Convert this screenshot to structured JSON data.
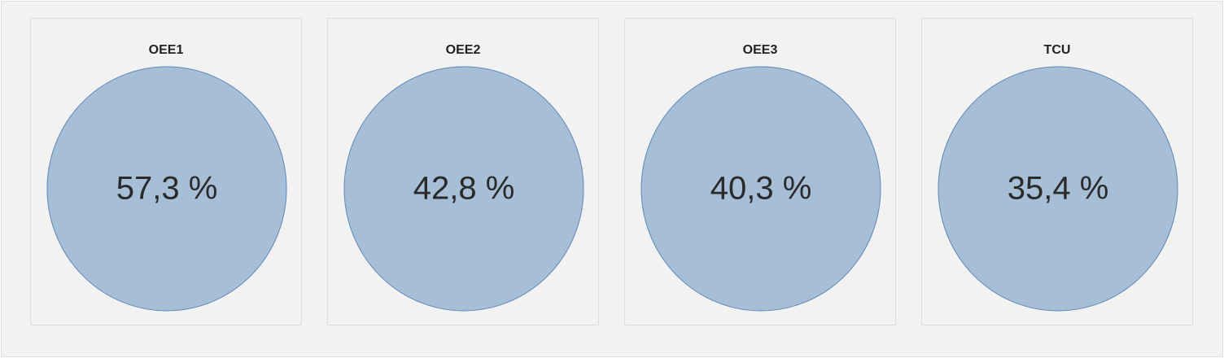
{
  "cards": [
    {
      "title": "OEE1",
      "value": "57,3 %"
    },
    {
      "title": "OEE2",
      "value": "42,8 %"
    },
    {
      "title": "OEE3",
      "value": "40,3 %"
    },
    {
      "title": "TCU",
      "value": "35,4 %"
    }
  ]
}
